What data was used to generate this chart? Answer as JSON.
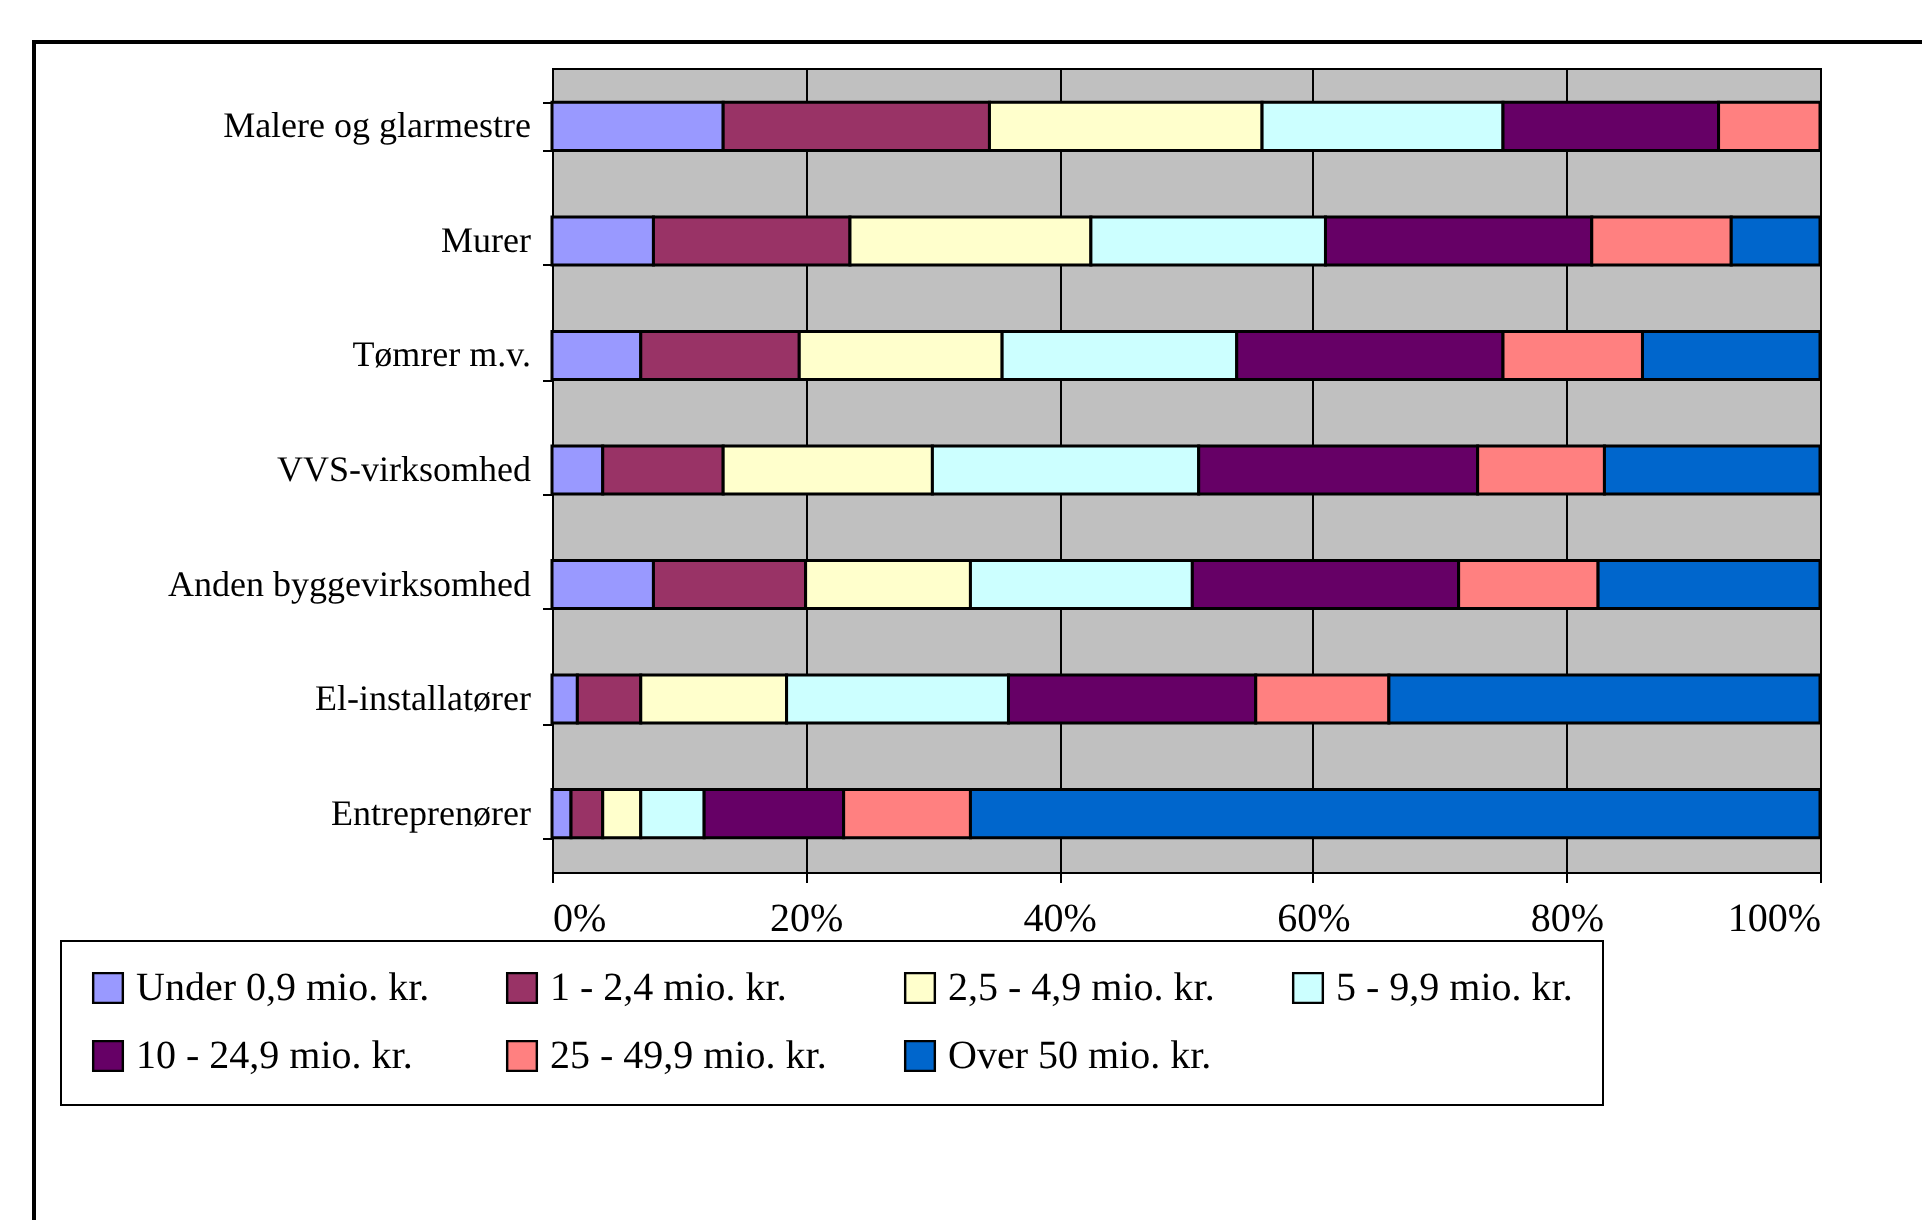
{
  "chart_data": {
    "type": "bar",
    "orientation": "horizontal",
    "stacked": true,
    "grid": "x",
    "legend": "bottom",
    "categories": [
      "Malere og glarmestre",
      "Murer",
      "Tømrer m.v.",
      "VVS-virksomhed",
      "Anden byggevirksomhed",
      "El-installatører",
      "Entreprenører"
    ],
    "xlim": [
      0,
      100
    ],
    "xticks": [
      {
        "value": 0,
        "label": "0%"
      },
      {
        "value": 20,
        "label": "20%"
      },
      {
        "value": 40,
        "label": "40%"
      },
      {
        "value": 60,
        "label": "60%"
      },
      {
        "value": 80,
        "label": "80%"
      },
      {
        "value": 100,
        "label": "100%"
      }
    ],
    "series": [
      {
        "name": "Under 0,9 mio. kr.",
        "color": "#9999ff",
        "values": [
          13.5,
          8,
          7,
          4,
          8,
          2,
          1.5
        ]
      },
      {
        "name": "1 - 2,4 mio. kr.",
        "color": "#993366",
        "values": [
          21,
          15.5,
          12.5,
          9.5,
          12,
          5,
          2.5
        ]
      },
      {
        "name": "2,5 - 4,9 mio. kr.",
        "color": "#ffffcc",
        "values": [
          21.5,
          19,
          16,
          16.5,
          13,
          11.5,
          3
        ]
      },
      {
        "name": "5 - 9,9 mio. kr.",
        "color": "#ccffff",
        "values": [
          19,
          18.5,
          18.5,
          21,
          17.5,
          17.5,
          5
        ]
      },
      {
        "name": "10 - 24,9 mio. kr.",
        "color": "#660066",
        "values": [
          17,
          21,
          21,
          22,
          21,
          19.5,
          11
        ]
      },
      {
        "name": "25 - 49,9 mio. kr.",
        "color": "#ff8080",
        "values": [
          8,
          11,
          11,
          10,
          11,
          10.5,
          10
        ]
      },
      {
        "name": "Over 50 mio. kr.",
        "color": "#0066cc",
        "values": [
          null,
          7,
          14,
          17,
          17.5,
          34,
          67
        ]
      }
    ]
  }
}
